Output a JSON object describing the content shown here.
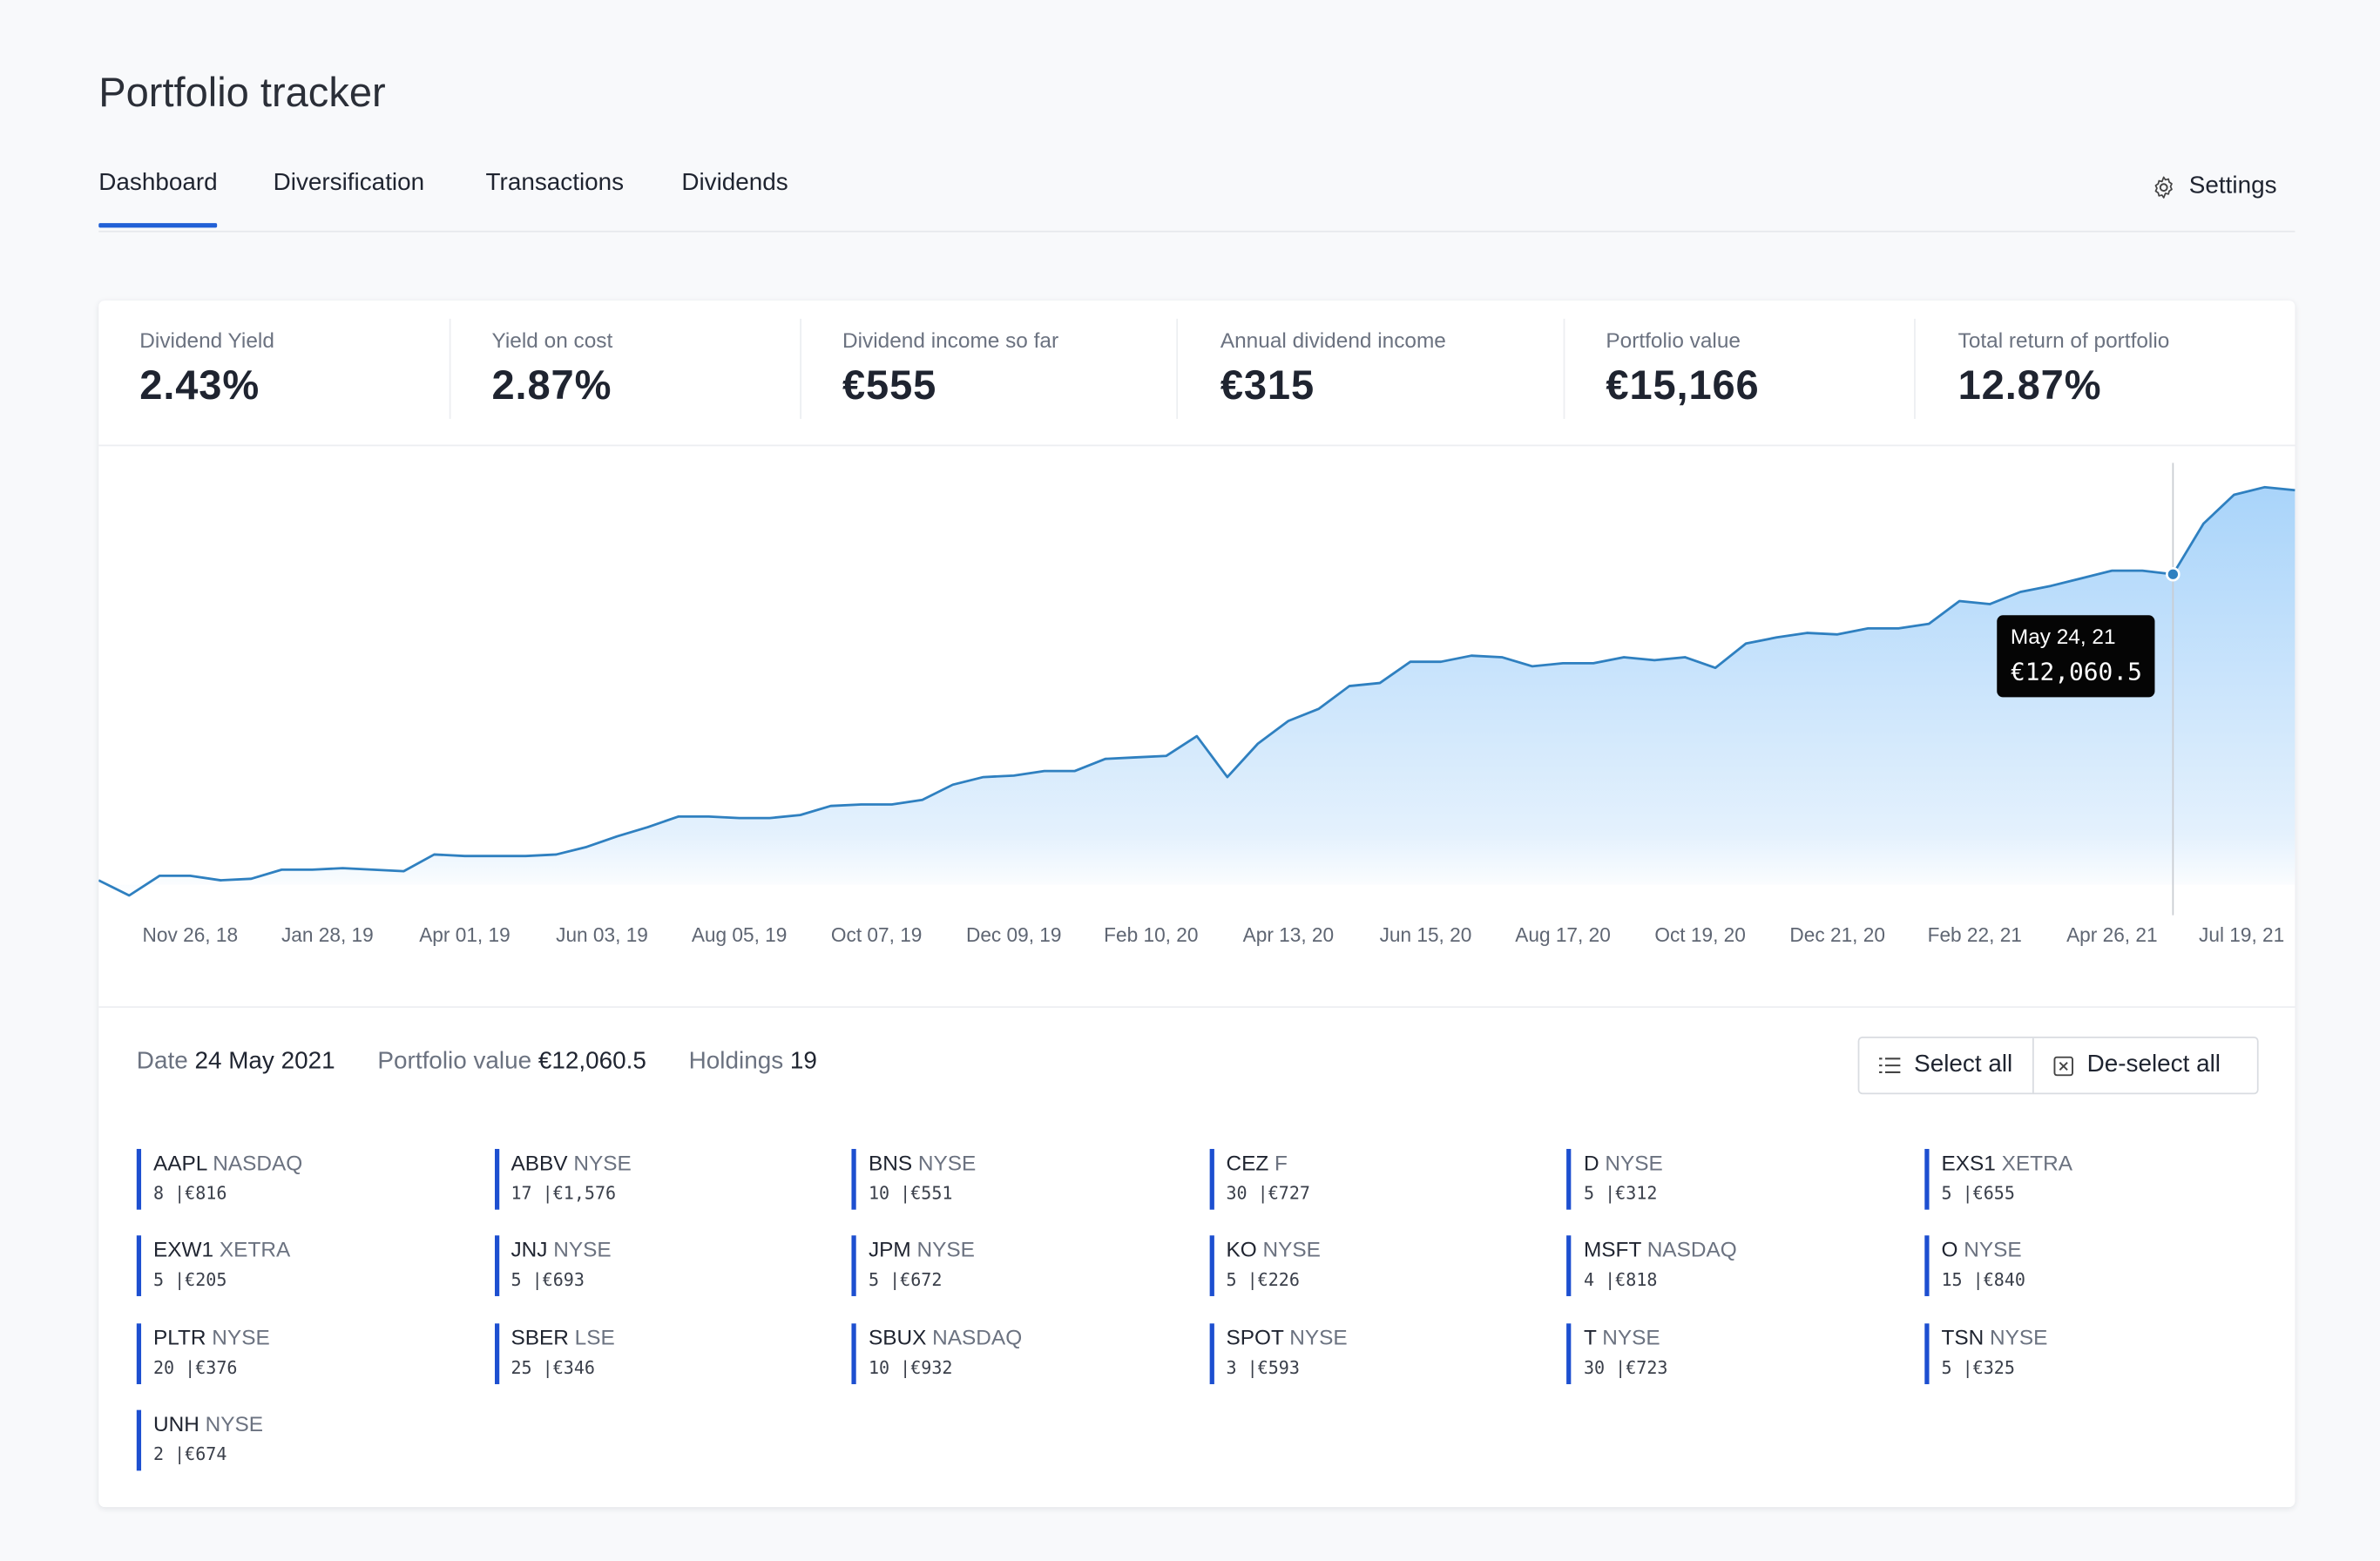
{
  "header": {
    "title": "Portfolio tracker",
    "tabs": [
      "Dashboard",
      "Diversification",
      "Transactions",
      "Dividends"
    ],
    "settings": "Settings"
  },
  "stats": [
    {
      "label": "Dividend Yield",
      "value": "2.43%"
    },
    {
      "label": "Yield on cost",
      "value": "2.87%"
    },
    {
      "label": "Dividend income so far",
      "value": "€555"
    },
    {
      "label": "Annual dividend income",
      "value": "€315"
    },
    {
      "label": "Portfolio value",
      "value": "€15,166"
    },
    {
      "label": "Total return of portfolio",
      "value": "12.87%"
    }
  ],
  "chart_data": {
    "type": "area",
    "x": [
      "2018-10-15",
      "2018-10-29",
      "2018-11-12",
      "2018-11-26",
      "2018-12-10",
      "2018-12-24",
      "2019-01-07",
      "2019-01-21",
      "2019-02-04",
      "2019-02-18",
      "2019-03-04",
      "2019-03-18",
      "2019-04-01",
      "2019-04-15",
      "2019-04-29",
      "2019-05-13",
      "2019-05-27",
      "2019-06-10",
      "2019-06-24",
      "2019-07-08",
      "2019-07-22",
      "2019-08-05",
      "2019-08-19",
      "2019-09-02",
      "2019-09-16",
      "2019-09-30",
      "2019-10-14",
      "2019-10-28",
      "2019-11-11",
      "2019-11-25",
      "2019-12-09",
      "2019-12-23",
      "2020-01-06",
      "2020-01-20",
      "2020-02-03",
      "2020-02-17",
      "2020-03-02",
      "2020-03-16",
      "2020-03-30",
      "2020-04-13",
      "2020-04-27",
      "2020-05-11",
      "2020-05-25",
      "2020-06-08",
      "2020-06-22",
      "2020-07-06",
      "2020-07-20",
      "2020-08-03",
      "2020-08-17",
      "2020-08-31",
      "2020-09-14",
      "2020-09-28",
      "2020-10-12",
      "2020-10-26",
      "2020-11-09",
      "2020-11-23",
      "2020-12-07",
      "2020-12-21",
      "2021-01-04",
      "2021-01-18",
      "2021-02-01",
      "2021-02-15",
      "2021-03-01",
      "2021-03-15",
      "2021-03-29",
      "2021-04-12",
      "2021-04-26",
      "2021-05-10",
      "2021-05-24",
      "2021-06-07",
      "2021-06-21",
      "2021-07-05",
      "2021-07-19"
    ],
    "series": [
      {
        "name": "Portfolio value",
        "color": "#2f80c0",
        "values": [
          1235,
          698,
          1396,
          1396,
          1235,
          1289,
          1611,
          1611,
          1664,
          1611,
          1557,
          2148,
          2094,
          2094,
          2094,
          2148,
          2416,
          2792,
          3114,
          3490,
          3490,
          3436,
          3436,
          3544,
          3866,
          3919,
          3919,
          4080,
          4617,
          4886,
          4939,
          5101,
          5101,
          5530,
          5584,
          5637,
          6335,
          4886,
          6067,
          6872,
          7302,
          8107,
          8215,
          8966,
          8966,
          9181,
          9127,
          8805,
          8913,
          8913,
          9127,
          9020,
          9127,
          8751,
          9611,
          9825,
          9986,
          9933,
          10147,
          10147,
          10308,
          11114,
          11006,
          11436,
          11650,
          11919,
          12188,
          12188,
          12060.5,
          13852,
          14872,
          15141,
          15033
        ]
      }
    ],
    "xlim": [
      "2018-10-15",
      "2021-07-19"
    ],
    "xticks": [
      {
        "value": "2018-11-26",
        "label": "Nov 26, 18"
      },
      {
        "value": "2019-01-28",
        "label": "Jan 28, 19"
      },
      {
        "value": "2019-04-01",
        "label": "Apr 01, 19"
      },
      {
        "value": "2019-06-03",
        "label": "Jun 03, 19"
      },
      {
        "value": "2019-08-05",
        "label": "Aug 05, 19"
      },
      {
        "value": "2019-10-07",
        "label": "Oct 07, 19"
      },
      {
        "value": "2019-12-09",
        "label": "Dec 09, 19"
      },
      {
        "value": "2020-02-10",
        "label": "Feb 10, 20"
      },
      {
        "value": "2020-04-13",
        "label": "Apr 13, 20"
      },
      {
        "value": "2020-06-15",
        "label": "Jun 15, 20"
      },
      {
        "value": "2020-08-17",
        "label": "Aug 17, 20"
      },
      {
        "value": "2020-10-19",
        "label": "Oct 19, 20"
      },
      {
        "value": "2020-12-21",
        "label": "Dec 21, 20"
      },
      {
        "value": "2021-02-22",
        "label": "Feb 22, 21"
      },
      {
        "value": "2021-04-26",
        "label": "Apr 26, 21"
      },
      {
        "value": "2021-07-19",
        "label": "Jul 19, 21"
      }
    ],
    "ylim": [
      0,
      16000
    ],
    "grid": false,
    "tooltip": {
      "x": "2021-05-24",
      "x_label": "May 24, 21",
      "value_label": "€12,060.5"
    }
  },
  "selection": [
    {
      "label": "Date",
      "value": "24 May 2021"
    },
    {
      "label": "Portfolio value",
      "value": "€12,060.5"
    },
    {
      "label": "Holdings",
      "value": 19
    }
  ],
  "buttons": [
    "Select all",
    "De-select all"
  ],
  "holdings": [
    {
      "ticker": "AAPL",
      "exchange": "NASDAQ",
      "position": "8 |€816"
    },
    {
      "ticker": "ABBV",
      "exchange": "NYSE",
      "position": "17 |€1,576"
    },
    {
      "ticker": "BNS",
      "exchange": "NYSE",
      "position": "10 |€551"
    },
    {
      "ticker": "CEZ",
      "exchange": "F",
      "position": "30 |€727"
    },
    {
      "ticker": "D",
      "exchange": "NYSE",
      "position": "5 |€312"
    },
    {
      "ticker": "EXS1",
      "exchange": "XETRA",
      "position": "5 |€655"
    },
    {
      "ticker": "EXW1",
      "exchange": "XETRA",
      "position": "5 |€205"
    },
    {
      "ticker": "JNJ",
      "exchange": "NYSE",
      "position": "5 |€693"
    },
    {
      "ticker": "JPM",
      "exchange": "NYSE",
      "position": "5 |€672"
    },
    {
      "ticker": "KO",
      "exchange": "NYSE",
      "position": "5 |€226"
    },
    {
      "ticker": "MSFT",
      "exchange": "NASDAQ",
      "position": "4 |€818"
    },
    {
      "ticker": "O",
      "exchange": "NYSE",
      "position": "15 |€840"
    },
    {
      "ticker": "PLTR",
      "exchange": "NYSE",
      "position": "20 |€376"
    },
    {
      "ticker": "SBER",
      "exchange": "LSE",
      "position": "25 |€346"
    },
    {
      "ticker": "SBUX",
      "exchange": "NASDAQ",
      "position": "10 |€932"
    },
    {
      "ticker": "SPOT",
      "exchange": "NYSE",
      "position": "3 |€593"
    },
    {
      "ticker": "T",
      "exchange": "NYSE",
      "position": "30 |€723"
    },
    {
      "ticker": "TSN",
      "exchange": "NYSE",
      "position": "5 |€325"
    },
    {
      "ticker": "UNH",
      "exchange": "NYSE",
      "position": "2 |€674"
    }
  ]
}
